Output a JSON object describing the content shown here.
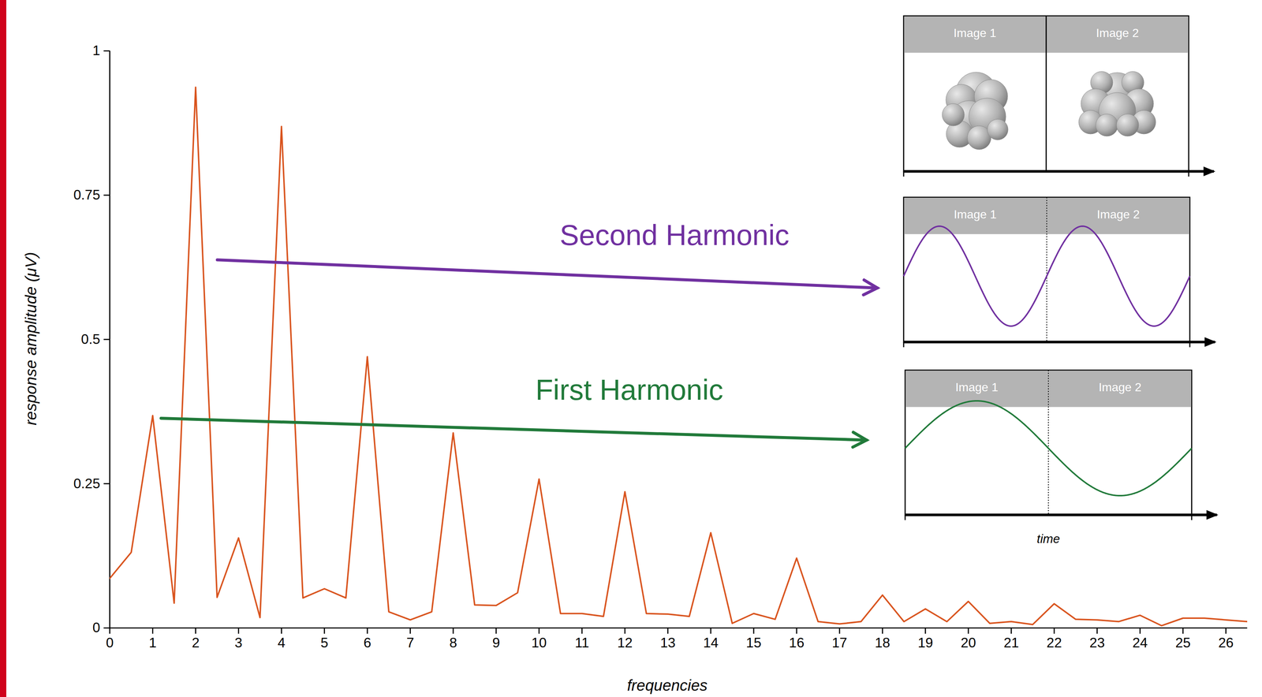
{
  "chart_data": {
    "type": "line",
    "xlabel": "frequencies",
    "ylabel": "response amplitude (μV)",
    "color": "#d9541e",
    "line_style": "solid",
    "grid": false,
    "x": [
      0,
      0.5,
      1,
      1.5,
      2,
      2.5,
      3,
      3.5,
      4,
      4.5,
      5,
      5.5,
      6,
      6.5,
      7,
      7.5,
      8,
      8.5,
      9,
      9.5,
      10,
      10.5,
      11,
      11.5,
      12,
      12.5,
      13,
      13.5,
      14,
      14.5,
      15,
      15.5,
      16,
      16.5,
      17,
      17.5,
      18,
      18.5,
      19,
      19.5,
      20,
      20.5,
      21,
      21.5,
      22,
      22.5,
      23,
      23.5,
      24,
      24.5,
      25,
      25.5,
      26,
      26.5
    ],
    "values": [
      0.086,
      0.131,
      0.368,
      0.043,
      0.937,
      0.053,
      0.156,
      0.018,
      0.869,
      0.052,
      0.068,
      0.052,
      0.47,
      0.028,
      0.014,
      0.028,
      0.338,
      0.04,
      0.039,
      0.061,
      0.258,
      0.025,
      0.025,
      0.02,
      0.236,
      0.025,
      0.024,
      0.02,
      0.165,
      0.008,
      0.025,
      0.015,
      0.121,
      0.011,
      0.007,
      0.011,
      0.057,
      0.011,
      0.033,
      0.011,
      0.046,
      0.008,
      0.011,
      0.006,
      0.042,
      0.015,
      0.014,
      0.011,
      0.022,
      0.004,
      0.017,
      0.017,
      0.014,
      0.011
    ],
    "xlim": [
      0,
      26.5
    ],
    "ylim": [
      0,
      1
    ],
    "xticks": [
      0,
      1,
      2,
      3,
      4,
      5,
      6,
      7,
      8,
      9,
      10,
      11,
      12,
      13,
      14,
      15,
      16,
      17,
      18,
      19,
      20,
      21,
      22,
      23,
      24,
      25,
      26
    ],
    "yticks": [
      0,
      0.25,
      0.5,
      0.75,
      1
    ],
    "annotations": [
      {
        "text": "Second Harmonic",
        "color": "#7030a0"
      },
      {
        "text": "First Harmonic",
        "color": "#217a3a"
      }
    ],
    "inset": {
      "panels": [
        "Image 1",
        "Image 2"
      ],
      "xlabel": "time"
    }
  }
}
